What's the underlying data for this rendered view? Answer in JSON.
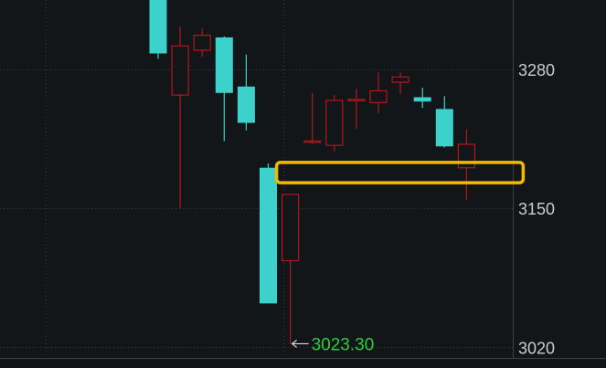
{
  "chart_data": {
    "type": "candlestick",
    "ylim": [
      3010,
      3345
    ],
    "yticks": [
      3280,
      3150,
      3020
    ],
    "ytick_labels": [
      "3280",
      "3150",
      "3020"
    ],
    "grid": true,
    "low_marker": {
      "label": "3023.30",
      "candle_index": 6,
      "value": 3023.3
    },
    "highlight_zone": {
      "low": 3174,
      "high": 3193
    },
    "candles": [
      {
        "open": 3357,
        "high": 3357,
        "low": 3290,
        "close": 3295
      },
      {
        "open": 3256,
        "high": 3320,
        "low": 3150,
        "close": 3302
      },
      {
        "open": 3298,
        "high": 3318,
        "low": 3292,
        "close": 3312
      },
      {
        "open": 3310,
        "high": 3311,
        "low": 3213,
        "close": 3258
      },
      {
        "open": 3264,
        "high": 3294,
        "low": 3223,
        "close": 3230
      },
      {
        "open": 3188,
        "high": 3192,
        "low": 3062,
        "close": 3061
      },
      {
        "open": 3101,
        "high": 3163,
        "low": 3023.3,
        "close": 3163
      },
      {
        "open": 3213,
        "high": 3258,
        "low": 3210,
        "close": 3213
      },
      {
        "open": 3209,
        "high": 3256,
        "low": 3203,
        "close": 3251
      },
      {
        "open": 3252,
        "high": 3262,
        "low": 3224,
        "close": 3252
      },
      {
        "open": 3249,
        "high": 3277,
        "low": 3239,
        "close": 3260
      },
      {
        "open": 3268,
        "high": 3277,
        "low": 3257,
        "close": 3273
      },
      {
        "open": 3254,
        "high": 3263,
        "low": 3244,
        "close": 3250
      },
      {
        "open": 3243,
        "high": 3255,
        "low": 3207,
        "close": 3208
      },
      {
        "open": 3188,
        "high": 3224,
        "low": 3158,
        "close": 3210
      }
    ],
    "colors": {
      "up": "#b3161d",
      "down": "#3dd1cc",
      "background": "#131619",
      "grid": "#3a3f45",
      "highlight": "#f5b800",
      "tick_text": "#c9ccd1",
      "low_text": "#2ecc40"
    }
  }
}
